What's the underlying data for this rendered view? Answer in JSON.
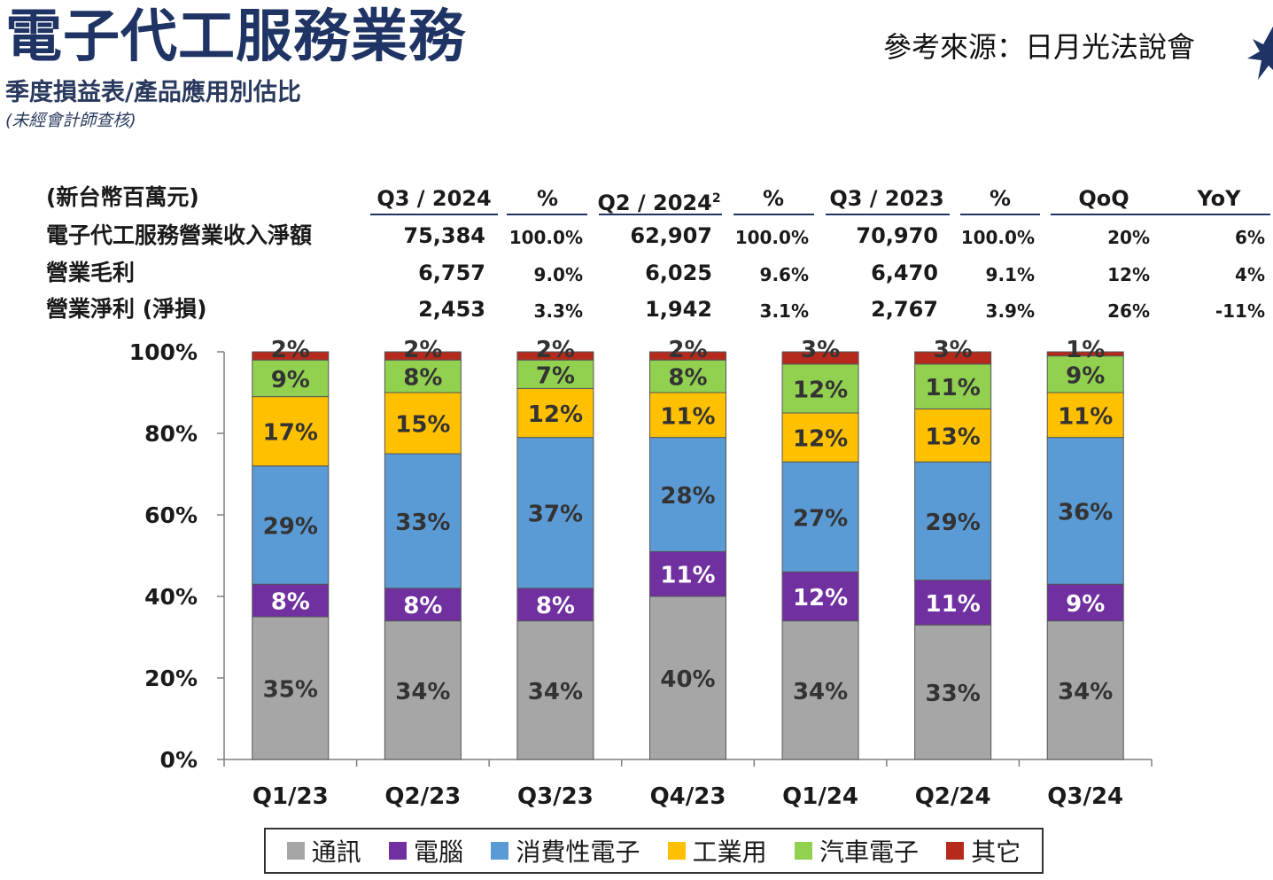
{
  "header": {
    "title": "電子代工服務業務",
    "source": "參考來源：日月光法說會",
    "subtitle": "季度損益表/產品應用別估比",
    "note": "(未經會計師查核)"
  },
  "table": {
    "unit_label": "(新台幣百萬元)",
    "columns": [
      {
        "label": "Q3 / 2024",
        "sup": ""
      },
      {
        "label": "%",
        "sup": ""
      },
      {
        "label": "Q2 / 2024",
        "sup": "2"
      },
      {
        "label": "%",
        "sup": ""
      },
      {
        "label": "Q3 / 2023",
        "sup": ""
      },
      {
        "label": "%",
        "sup": ""
      },
      {
        "label": "QoQ",
        "sup": ""
      },
      {
        "label": "YoY",
        "sup": ""
      }
    ],
    "rows": [
      {
        "label": "電子代工服務營業收入淨額",
        "cells": [
          "75,384",
          "100.0%",
          "62,907",
          "100.0%",
          "70,970",
          "100.0%",
          "20%",
          "6%"
        ]
      },
      {
        "label": "營業毛利",
        "cells": [
          "6,757",
          "9.0%",
          "6,025",
          "9.6%",
          "6,470",
          "9.1%",
          "12%",
          "4%"
        ]
      },
      {
        "label": "營業淨利 (淨損)",
        "cells": [
          "2,453",
          "3.3%",
          "1,942",
          "3.1%",
          "2,767",
          "3.9%",
          "26%",
          "-11%"
        ]
      }
    ]
  },
  "chart_data": {
    "type": "bar",
    "stacked": true,
    "categories": [
      "Q1/23",
      "Q2/23",
      "Q3/23",
      "Q4/23",
      "Q1/24",
      "Q2/24",
      "Q3/24"
    ],
    "series": [
      {
        "name": "通訊",
        "color": "#a6a6a6",
        "values": [
          35,
          34,
          34,
          40,
          34,
          33,
          34
        ],
        "label_color": "#333333"
      },
      {
        "name": "電腦",
        "color": "#7030a0",
        "values": [
          8,
          8,
          8,
          11,
          12,
          11,
          9
        ],
        "label_color": "#ffffff"
      },
      {
        "name": "消費性電子",
        "color": "#5b9bd5",
        "values": [
          29,
          33,
          37,
          28,
          27,
          29,
          36
        ],
        "label_color": "#333333"
      },
      {
        "name": "工業用",
        "color": "#ffc000",
        "values": [
          17,
          15,
          12,
          11,
          12,
          13,
          11
        ],
        "label_color": "#333333"
      },
      {
        "name": "汽車電子",
        "color": "#92d050",
        "values": [
          9,
          8,
          7,
          8,
          12,
          11,
          9
        ],
        "label_color": "#333333"
      },
      {
        "name": "其它",
        "color": "#b52a1c",
        "values": [
          2,
          2,
          2,
          2,
          3,
          3,
          1
        ],
        "label_color": "#333333"
      }
    ],
    "data_labels": [
      [
        "35%",
        "34%",
        "34%",
        "40%",
        "34%",
        "33%",
        "34%"
      ],
      [
        "8%",
        "8%",
        "8%",
        "11%",
        "12%",
        "11%",
        "9%"
      ],
      [
        "29%",
        "33%",
        "37%",
        "28%",
        "27%",
        "29%",
        "36%"
      ],
      [
        "17%",
        "15%",
        "12%",
        "11%",
        "12%",
        "13%",
        "11%"
      ],
      [
        "9%",
        "8%",
        "7%",
        "8%",
        "12%",
        "11%",
        "9%"
      ],
      [
        "2%",
        "2%",
        "2%",
        "2%",
        "3%",
        "3%",
        "1%"
      ]
    ],
    "yticks": [
      "0%",
      "20%",
      "40%",
      "60%",
      "80%",
      "100%"
    ],
    "ylim": [
      0,
      100
    ],
    "legend_position": "bottom"
  }
}
